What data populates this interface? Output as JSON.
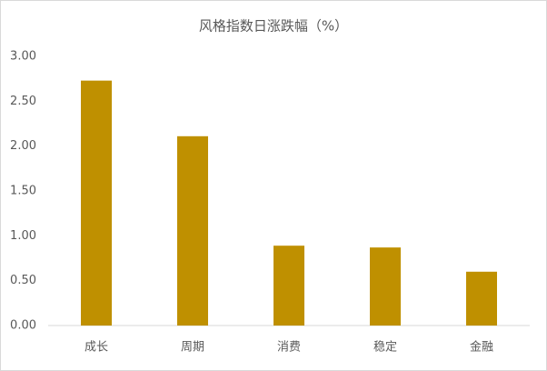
{
  "chart_data": {
    "type": "bar",
    "title": "风格指数日涨跌幅（%）",
    "categories": [
      "成长",
      "周期",
      "消费",
      "稳定",
      "金融"
    ],
    "values": [
      2.73,
      2.11,
      0.89,
      0.87,
      0.6
    ],
    "color": "#bf9000",
    "ylim": [
      0,
      3
    ],
    "yticks": [
      {
        "value": 0,
        "label": "0.00"
      },
      {
        "value": 0.5,
        "label": "0.50"
      },
      {
        "value": 1,
        "label": "1.00"
      },
      {
        "value": 1.5,
        "label": "1.50"
      },
      {
        "value": 2,
        "label": "2.00"
      },
      {
        "value": 2.5,
        "label": "2.50"
      },
      {
        "value": 3,
        "label": "3.00"
      }
    ],
    "grid": false
  }
}
